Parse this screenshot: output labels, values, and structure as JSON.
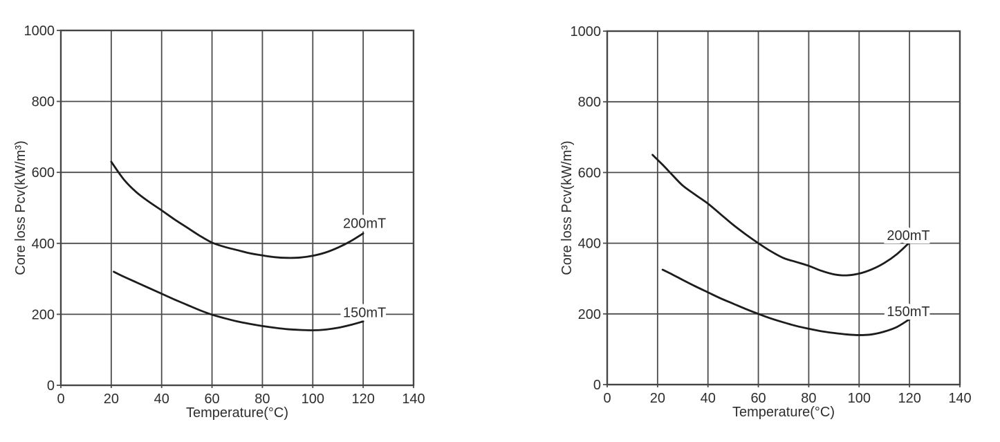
{
  "colors": {
    "background": "#ffffff",
    "curve": "#1c1c1c",
    "grid": "#4c4c4c",
    "border": "#454545",
    "text": "#2d2d2d",
    "label_halo": "#ffffff"
  },
  "chart_data": [
    {
      "type": "line",
      "title": "",
      "xlabel": "Temperature(°C)",
      "ylabel": "Core loss Pcv(kW/m³)",
      "xlim": [
        0,
        140
      ],
      "ylim": [
        0,
        1000
      ],
      "x_ticks": [
        0,
        20,
        40,
        60,
        80,
        100,
        120,
        140
      ],
      "y_ticks": [
        0,
        200,
        400,
        600,
        800,
        1000
      ],
      "grid": true,
      "legend_position": "inline-curve-labels",
      "series": [
        {
          "name": "200mT",
          "label_x": 112,
          "label_y": 457,
          "points": [
            [
              20,
              630
            ],
            [
              25,
              580
            ],
            [
              30,
              544
            ],
            [
              35,
              517
            ],
            [
              40,
              493
            ],
            [
              45,
              468
            ],
            [
              50,
              445
            ],
            [
              55,
              422
            ],
            [
              60,
              402
            ],
            [
              65,
              390
            ],
            [
              70,
              381
            ],
            [
              75,
              372
            ],
            [
              80,
              366
            ],
            [
              85,
              361
            ],
            [
              90,
              359
            ],
            [
              95,
              360
            ],
            [
              100,
              365
            ],
            [
              105,
              374
            ],
            [
              110,
              388
            ],
            [
              115,
              406
            ],
            [
              120,
              428
            ]
          ]
        },
        {
          "name": "150mT",
          "label_x": 112,
          "label_y": 206,
          "points": [
            [
              21,
              320
            ],
            [
              25,
              306
            ],
            [
              30,
              290
            ],
            [
              35,
              274
            ],
            [
              40,
              258
            ],
            [
              45,
              242
            ],
            [
              50,
              227
            ],
            [
              55,
              212
            ],
            [
              60,
              199
            ],
            [
              65,
              189
            ],
            [
              70,
              180
            ],
            [
              75,
              173
            ],
            [
              80,
              167
            ],
            [
              85,
              162
            ],
            [
              90,
              158
            ],
            [
              95,
              156
            ],
            [
              100,
              155
            ],
            [
              105,
              157
            ],
            [
              110,
              162
            ],
            [
              115,
              170
            ],
            [
              120,
              180
            ]
          ]
        }
      ]
    },
    {
      "type": "line",
      "title": "",
      "xlabel": "Temperature(°C)",
      "ylabel": "Core loss Pcv(kW/m³)",
      "xlim": [
        0,
        140
      ],
      "ylim": [
        0,
        1000
      ],
      "x_ticks": [
        0,
        20,
        40,
        60,
        80,
        100,
        120,
        140
      ],
      "y_ticks": [
        0,
        200,
        400,
        600,
        800,
        1000
      ],
      "grid": true,
      "legend_position": "inline-curve-labels",
      "series": [
        {
          "name": "200mT",
          "label_x": 111,
          "label_y": 423,
          "points": [
            [
              18,
              650
            ],
            [
              22,
              622
            ],
            [
              26,
              592
            ],
            [
              30,
              563
            ],
            [
              35,
              537
            ],
            [
              40,
              512
            ],
            [
              45,
              482
            ],
            [
              50,
              452
            ],
            [
              55,
              425
            ],
            [
              60,
              400
            ],
            [
              65,
              377
            ],
            [
              70,
              358
            ],
            [
              75,
              347
            ],
            [
              80,
              336
            ],
            [
              85,
              322
            ],
            [
              90,
              312
            ],
            [
              95,
              309
            ],
            [
              100,
              314
            ],
            [
              105,
              326
            ],
            [
              110,
              344
            ],
            [
              115,
              369
            ],
            [
              120,
              402
            ]
          ]
        },
        {
          "name": "150mT",
          "label_x": 111,
          "label_y": 207,
          "points": [
            [
              22,
              325
            ],
            [
              26,
              311
            ],
            [
              30,
              296
            ],
            [
              35,
              278
            ],
            [
              40,
              261
            ],
            [
              45,
              244
            ],
            [
              50,
              229
            ],
            [
              55,
              214
            ],
            [
              60,
              200
            ],
            [
              65,
              187
            ],
            [
              70,
              176
            ],
            [
              75,
              166
            ],
            [
              80,
              158
            ],
            [
              85,
              151
            ],
            [
              90,
              146
            ],
            [
              95,
              142
            ],
            [
              100,
              140
            ],
            [
              105,
              142
            ],
            [
              110,
              150
            ],
            [
              115,
              163
            ],
            [
              120,
              185
            ]
          ]
        }
      ]
    }
  ]
}
